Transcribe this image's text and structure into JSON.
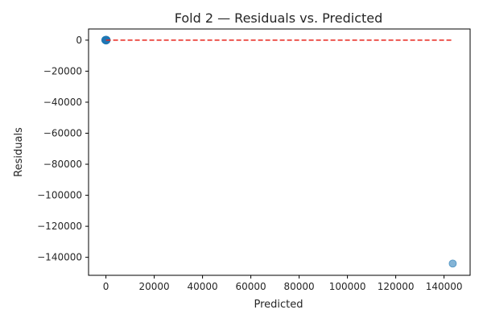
{
  "chart_data": {
    "type": "scatter",
    "title": "Fold 2 — Residuals vs. Predicted",
    "xlabel": "Predicted",
    "ylabel": "Residuals",
    "xlim": [
      -7200,
      150800
    ],
    "ylim": [
      -151600,
      7200
    ],
    "x_ticks": [
      0,
      20000,
      40000,
      60000,
      80000,
      100000,
      120000,
      140000
    ],
    "y_ticks": [
      0,
      -20000,
      -40000,
      -60000,
      -80000,
      -100000,
      -120000,
      -140000
    ],
    "x_tick_labels": [
      "0",
      "20000",
      "40000",
      "60000",
      "80000",
      "100000",
      "120000",
      "140000"
    ],
    "y_tick_labels": [
      "0",
      "−20000",
      "−40000",
      "−60000",
      "−80000",
      "−100000",
      "−120000",
      "−140000"
    ],
    "grid": false,
    "point_color": "#1f77b4",
    "point_alpha": 0.55,
    "reference_line": {
      "y": 0,
      "x_range": [
        0,
        143600
      ],
      "style": "dashed",
      "color": "#e8261d"
    },
    "points": [
      {
        "x": -300,
        "y": 120
      },
      {
        "x": -150,
        "y": 40
      },
      {
        "x": 0,
        "y": -60
      },
      {
        "x": 120,
        "y": 80
      },
      {
        "x": 200,
        "y": -20
      },
      {
        "x": 60,
        "y": 180
      },
      {
        "x": -80,
        "y": -140
      },
      {
        "x": 260,
        "y": 30
      },
      {
        "x": 10,
        "y": 250
      },
      {
        "x": 150,
        "y": -90
      },
      {
        "x": -220,
        "y": -40
      },
      {
        "x": 90,
        "y": 10
      },
      {
        "x": 300,
        "y": 150
      },
      {
        "x": -40,
        "y": 60
      },
      {
        "x": 180,
        "y": -180
      },
      {
        "x": 40,
        "y": -10
      },
      {
        "x": -120,
        "y": 210
      },
      {
        "x": 240,
        "y": 90
      },
      {
        "x": 20,
        "y": -220
      },
      {
        "x": 110,
        "y": 140
      },
      {
        "x": 143600,
        "y": -144000
      }
    ]
  }
}
